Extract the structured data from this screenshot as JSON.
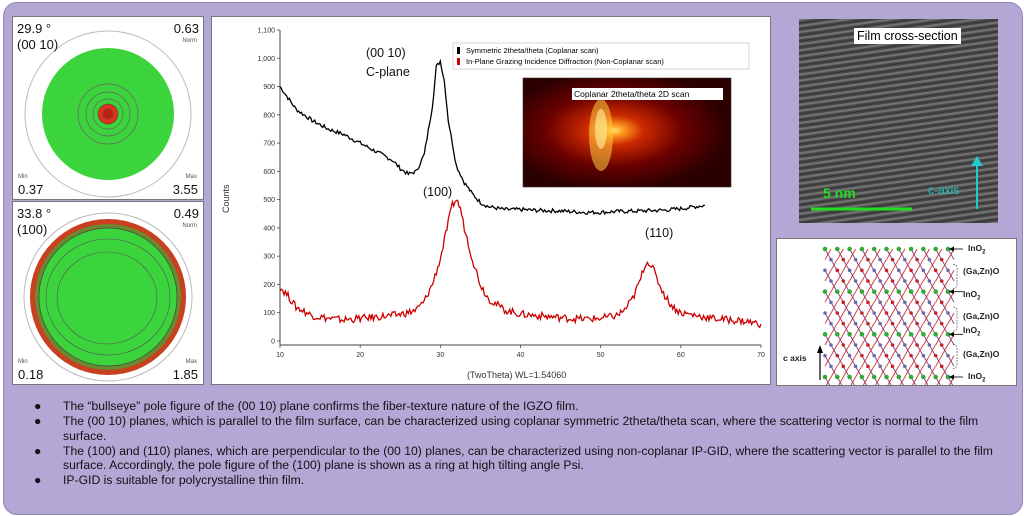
{
  "pole_figure_1": {
    "angle": "29.9 °",
    "plane": "(00 10)",
    "max_top": "0.63",
    "norm_label": "Norm",
    "min_label": "Min",
    "max_label": "Max",
    "min_value": "0.37",
    "max_value": "3.55"
  },
  "pole_figure_2": {
    "angle": "33.8 °",
    "plane": "(100)",
    "max_top": "0.49",
    "norm_label": "Norm",
    "min_label": "Min",
    "max_label": "Max",
    "min_value": "0.18",
    "max_value": "1.85"
  },
  "chart_data": {
    "type": "line",
    "xlabel": "(TwoTheta) WL=1.54060",
    "ylabel": "Counts",
    "xlim": [
      10,
      70
    ],
    "ylim": [
      0,
      1100
    ],
    "x_ticks": [
      10,
      20,
      30,
      40,
      50,
      60,
      70
    ],
    "y_ticks": [
      "0",
      "100",
      "200",
      "300",
      "400",
      "500",
      "600",
      "700",
      "800",
      "900",
      "1,000",
      "1,100"
    ],
    "legend": {
      "position": "top-right",
      "entries": [
        "Symmetric 2theta/theta (Coplanar scan)",
        "In-Plane Grazing Incidence Diffraction (Non-Coplanar scan)"
      ]
    },
    "series": [
      {
        "name": "Symmetric 2theta/theta (Coplanar scan)",
        "color": "#000000",
        "x": [
          10,
          12,
          14,
          16,
          18,
          20,
          22,
          24,
          25,
          26,
          27,
          28,
          29,
          29.5,
          30,
          30.5,
          31,
          32,
          33,
          34,
          35,
          36,
          38,
          40,
          42,
          45,
          48,
          50,
          52,
          55,
          58,
          60,
          63
        ],
        "y": [
          900,
          820,
          780,
          750,
          730,
          700,
          670,
          640,
          610,
          590,
          600,
          660,
          830,
          970,
          990,
          920,
          780,
          620,
          560,
          520,
          490,
          475,
          465,
          465,
          462,
          460,
          455,
          455,
          458,
          460,
          463,
          468,
          480
        ]
      },
      {
        "name": "In-Plane Grazing Incidence Diffraction (Non-Coplanar scan)",
        "color": "#cc0000",
        "x": [
          10,
          11,
          12,
          14,
          16,
          18,
          20,
          22,
          24,
          26,
          27,
          28,
          29,
          30,
          31,
          31.5,
          32,
          32.5,
          33,
          34,
          35,
          36,
          38,
          40,
          42,
          44,
          46,
          48,
          50,
          52,
          53,
          54,
          55,
          55.5,
          56,
          56.5,
          57,
          58,
          59,
          60,
          62,
          64,
          66,
          68,
          70
        ],
        "y": [
          190,
          160,
          120,
          90,
          80,
          75,
          80,
          85,
          90,
          100,
          110,
          140,
          200,
          290,
          420,
          480,
          500,
          470,
          400,
          290,
          200,
          150,
          110,
          95,
          90,
          85,
          80,
          78,
          80,
          90,
          110,
          150,
          220,
          270,
          280,
          260,
          220,
          160,
          120,
          100,
          90,
          80,
          75,
          70,
          60
        ]
      }
    ],
    "annotations": [
      "(00 10)",
      "C-plane",
      "(100)",
      "(110)"
    ],
    "inset": {
      "title": "Coplanar 2theta/theta 2D scan"
    }
  },
  "tem": {
    "label": "Film cross-section",
    "scale": "5  nm",
    "axis": "c-axis"
  },
  "structure": {
    "labels": [
      "InO",
      "(Ga,Zn)O",
      "InO",
      "(Ga,Zn)O",
      "InO",
      "(Ga,Zn)O",
      "InO"
    ],
    "subscript": "2",
    "axis": "c axis"
  },
  "bullets": [
    "The “bullseye” pole figure of the (00 10) plane confirms the fiber-texture nature of the IGZO film.",
    "The (00 10) planes, which is parallel to the film surface, can be characterized using coplanar symmetric 2theta/theta scan, where the scattering vector is normal to the film surface.",
    "The (100) and (110) planes, which are perpendicular to the (00 10) planes, can be characterized using non-coplanar IP-GID, where the scattering vector is parallel to the film surface. Accordingly, the pole figure of the (100) plane is shown as a ring at high tilting angle Psi.",
    "IP-GID is suitable for polycrystalline thin film."
  ],
  "bullet_symbol": "●"
}
